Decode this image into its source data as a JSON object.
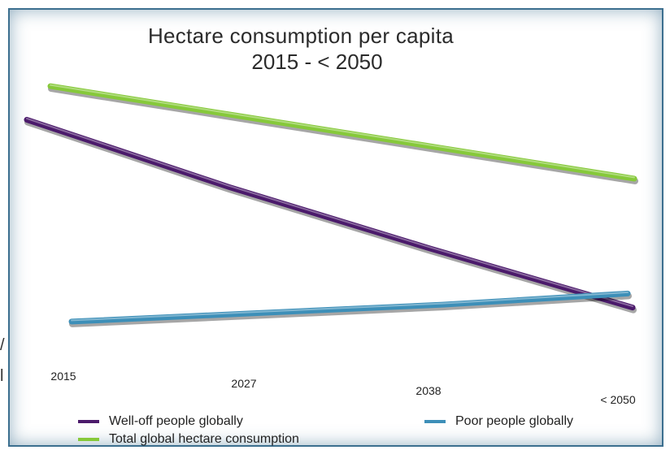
{
  "chart_data": {
    "type": "line",
    "title": "Hectare consumption per capita",
    "subtitle": "2015 - < 2050",
    "categories": [
      "2015",
      "2027",
      "2038",
      "< 2050"
    ],
    "ylim": [
      0,
      10
    ],
    "grid": false,
    "legend_position": "bottom",
    "series": [
      {
        "name": "Well-off people globally",
        "color": "#4b1a6b",
        "values": [
          7.9,
          5.5,
          3.3,
          1.2
        ]
      },
      {
        "name": "Poor people globally",
        "color": "#3d8fb8",
        "values": [
          0.7,
          1.0,
          1.3,
          1.7
        ]
      },
      {
        "name": "Total global hectare consumption",
        "color": "#86c93a",
        "values": [
          9.1,
          8.0,
          6.9,
          5.8
        ]
      }
    ]
  },
  "edge_marks": [
    "/",
    "l"
  ],
  "colors": {
    "frame": "#3c6f8f",
    "background": "#ffffff"
  }
}
